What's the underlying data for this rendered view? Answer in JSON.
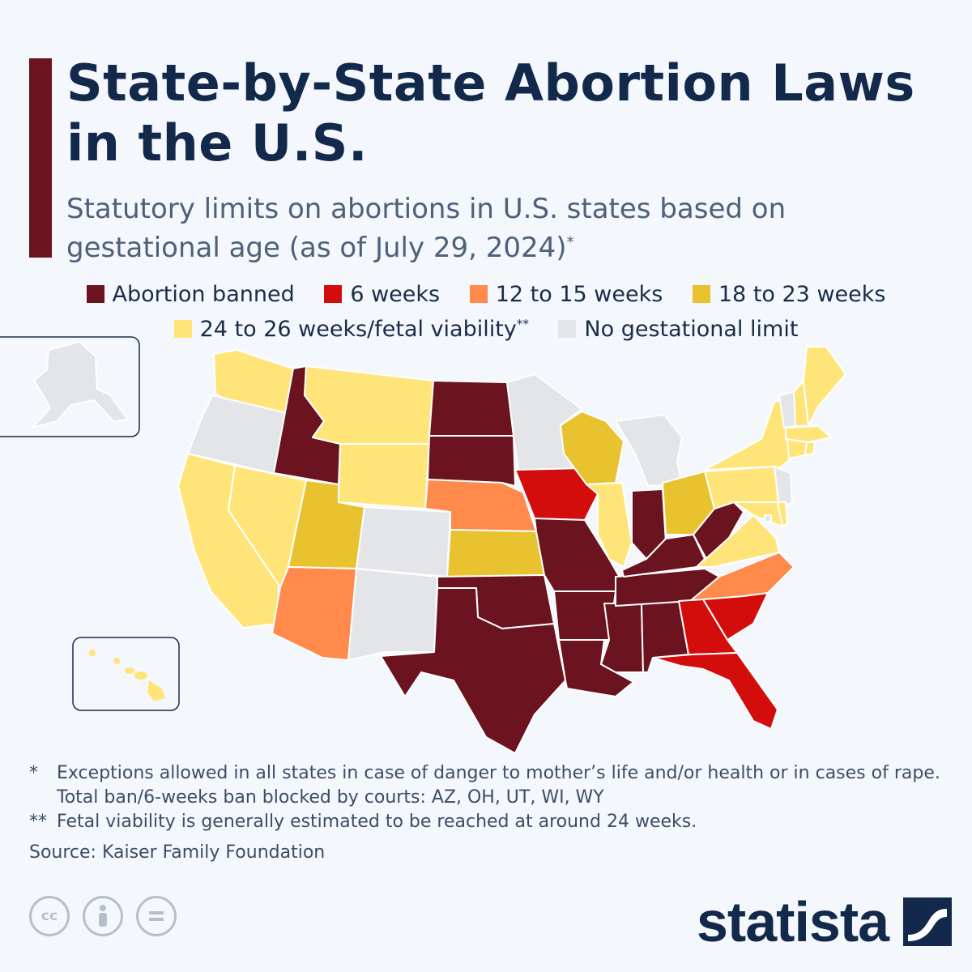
{
  "header": {
    "title": "State-by-State Abortion Laws in the U.S.",
    "subtitle": "Statutory limits on abortions in U.S. states based on gestational age (as of July 29, 2024)",
    "subtitle_mark": "*"
  },
  "legend": [
    {
      "label": "Abortion banned",
      "mark": "",
      "color": "#6b1420"
    },
    {
      "label": "6 weeks",
      "mark": "",
      "color": "#d30c0c"
    },
    {
      "label": "12 to 15 weeks",
      "mark": "",
      "color": "#ff8a4c"
    },
    {
      "label": "18 to 23 weeks",
      "mark": "",
      "color": "#e8c22f"
    },
    {
      "label": "24 to 26 weeks/fetal viability",
      "mark": "**",
      "color": "#ffe579"
    },
    {
      "label": "No gestational limit",
      "mark": "",
      "color": "#e3e5e8"
    }
  ],
  "states": {
    "banned": [
      "ID",
      "ND",
      "SD",
      "MO",
      "AR",
      "OK",
      "TX",
      "LA",
      "MS",
      "AL",
      "TN",
      "KY",
      "IN",
      "WV"
    ],
    "six_weeks": [
      "IA",
      "GA",
      "SC",
      "FL"
    ],
    "twelve_fifteen": [
      "NE",
      "AZ",
      "NC"
    ],
    "eighteen_twentythree": [
      "UT",
      "KS",
      "OH",
      "WI"
    ],
    "viability": [
      "WA",
      "MT",
      "WY",
      "CA",
      "NV",
      "IL",
      "PA",
      "NY",
      "VA",
      "ME",
      "NH",
      "MA",
      "CT",
      "RI",
      "DE",
      "MD",
      "HI"
    ],
    "no_limit": [
      "OR",
      "CO",
      "NM",
      "MN",
      "MI",
      "VT",
      "NJ",
      "AK",
      "DC"
    ]
  },
  "footnotes": [
    {
      "mark": "*",
      "lines": [
        "Exceptions allowed in all states in case of danger to mother’s life and/or health or in cases of rape.",
        "Total ban/6-weeks ban blocked by courts: AZ, OH, UT, WI, WY"
      ]
    },
    {
      "mark": "**",
      "lines": [
        "Fetal viability is generally estimated to be reached at around 24 weeks."
      ]
    }
  ],
  "source": "Source: Kaiser Family Foundation",
  "license_icons": {
    "cc": "cc",
    "by_icon": "person-icon",
    "nd_icon": "equals-icon"
  },
  "brand": "statista"
}
